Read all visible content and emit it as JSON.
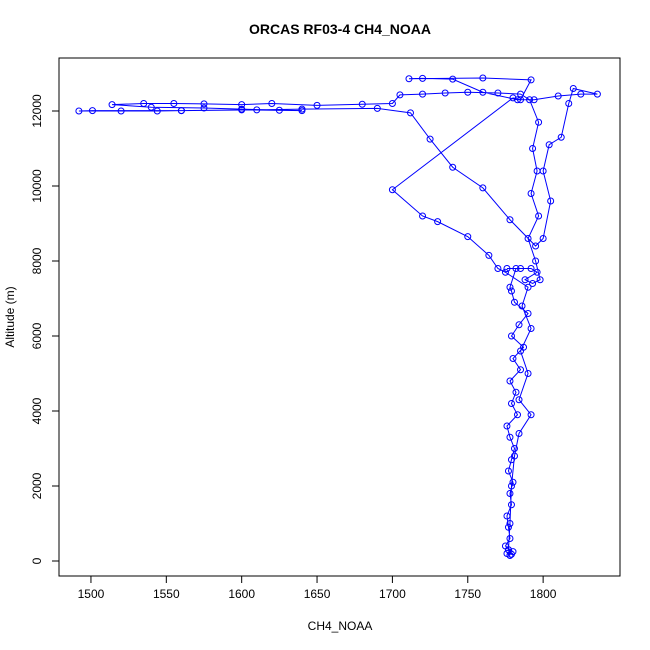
{
  "chart_data": {
    "type": "line",
    "title": "ORCAS RF03-4 CH4_NOAA",
    "x_label": "CH4_NOAA",
    "y_label": "Altitude (m)",
    "color": "#0000ff",
    "x": [
      1778,
      1776,
      1779,
      1777,
      1780,
      1775,
      1778,
      1777,
      1776,
      1779,
      1778,
      1780,
      1777,
      1779,
      1781,
      1778,
      1776,
      1783,
      1779,
      1782,
      1778,
      1785,
      1780,
      1787,
      1779,
      1784,
      1790,
      1781,
      1779,
      1778,
      1782,
      1776,
      1785,
      1792,
      1796,
      1788,
      1793,
      1798,
      1795,
      1790,
      1797,
      1792,
      1796,
      1793,
      1797,
      1791,
      1785,
      1770,
      1750,
      1735,
      1720,
      1705,
      1700,
      1680,
      1650,
      1620,
      1600,
      1575,
      1555,
      1535,
      1514,
      1540,
      1575,
      1600,
      1625,
      1640,
      1600,
      1560,
      1544,
      1520,
      1492,
      1501,
      1560,
      1610,
      1640,
      1690,
      1712,
      1725,
      1740,
      1760,
      1778,
      1795,
      1800,
      1805,
      1800,
      1804,
      1812,
      1817,
      1820,
      1836,
      1825,
      1810,
      1794,
      1783,
      1760,
      1740,
      1720,
      1711,
      1760,
      1792,
      1785,
      1780,
      1700,
      1720,
      1730,
      1750,
      1764,
      1770,
      1775,
      1790,
      1786,
      1792,
      1785,
      1790,
      1784,
      1792,
      1784,
      1781,
      1779,
      1778,
      1777,
      1778
    ],
    "values": [
      150,
      200,
      180,
      300,
      250,
      400,
      600,
      900,
      1200,
      1500,
      1800,
      2100,
      2400,
      2700,
      3000,
      3300,
      3600,
      3900,
      4200,
      4500,
      4800,
      5100,
      5400,
      5700,
      6000,
      6300,
      6600,
      6900,
      7200,
      7300,
      7800,
      7800,
      7800,
      7800,
      7700,
      7500,
      7400,
      7500,
      8000,
      8600,
      9200,
      9800,
      10400,
      11000,
      11700,
      12300,
      12450,
      12480,
      12500,
      12480,
      12450,
      12430,
      12200,
      12180,
      12150,
      12200,
      12170,
      12190,
      12200,
      12200,
      12170,
      12100,
      12080,
      12050,
      12020,
      12010,
      12030,
      12010,
      12000,
      12000,
      12000,
      12010,
      12010,
      12030,
      12050,
      12070,
      11950,
      11250,
      10500,
      9950,
      9100,
      8400,
      8600,
      9600,
      10400,
      11100,
      11300,
      12200,
      12600,
      12450,
      12450,
      12400,
      12300,
      12300,
      12500,
      12850,
      12870,
      12860,
      12880,
      12830,
      12300,
      12350,
      9900,
      9200,
      9050,
      8650,
      8150,
      7800,
      7700,
      7300,
      6800,
      6200,
      5600,
      5000,
      4300,
      3900,
      3400,
      2800,
      2000,
      1000,
      300,
      150
    ],
    "xlim": [
      1478.8,
      1851
    ],
    "ylim": [
      -400,
      13413
    ],
    "xticks": [
      1500,
      1550,
      1600,
      1650,
      1700,
      1750,
      1800
    ],
    "yticks": [
      0,
      2000,
      4000,
      6000,
      8000,
      10000,
      12000
    ]
  }
}
